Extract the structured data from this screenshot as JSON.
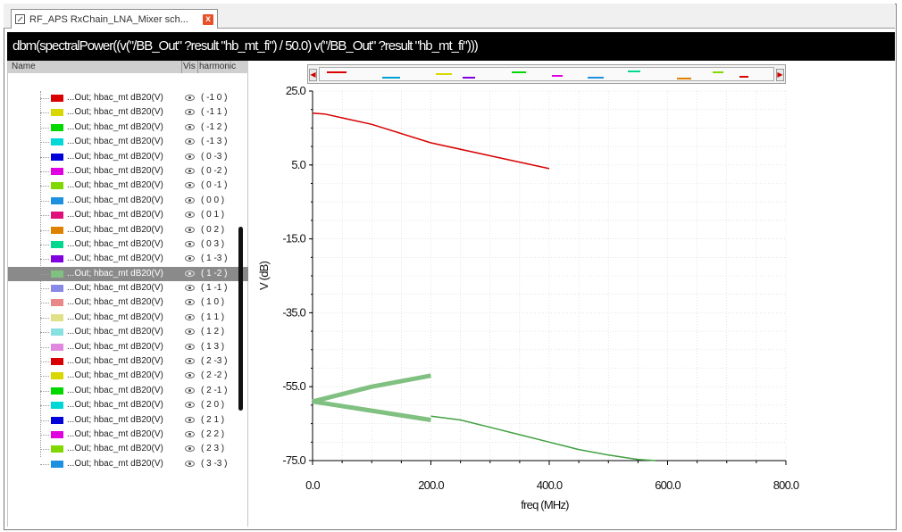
{
  "tab": {
    "title": "RF_APS RxChain_LNA_Mixer sch...",
    "close_label": "x"
  },
  "expression": "dbm(spectralPower((v(\"/BB_Out\" ?result \"hb_mt_fi\") / 50.0) v(\"/BB_Out\" ?result \"hb_mt_fi\")))",
  "list_header": {
    "name": "Name",
    "vis": "Vis",
    "harmonic": "harmonic"
  },
  "signals": [
    {
      "label": "...Out; hbac_mt dB20(V)",
      "harmonic": "( -1 0 )",
      "color": "#d80000"
    },
    {
      "label": "...Out; hbac_mt dB20(V)",
      "harmonic": "( -1 1 )",
      "color": "#d8d800"
    },
    {
      "label": "...Out; hbac_mt dB20(V)",
      "harmonic": "( -1 2 )",
      "color": "#00d800"
    },
    {
      "label": "...Out; hbac_mt dB20(V)",
      "harmonic": "( -1 3 )",
      "color": "#00d8d8"
    },
    {
      "label": "...Out; hbac_mt dB20(V)",
      "harmonic": "( 0 -3 )",
      "color": "#0000d8"
    },
    {
      "label": "...Out; hbac_mt dB20(V)",
      "harmonic": "( 0 -2 )",
      "color": "#e000e0"
    },
    {
      "label": "...Out; hbac_mt dB20(V)",
      "harmonic": "( 0 -1 )",
      "color": "#80d800"
    },
    {
      "label": "...Out; hbac_mt dB20(V)",
      "harmonic": "( 0 0 )",
      "color": "#1e90e0"
    },
    {
      "label": "...Out; hbac_mt dB20(V)",
      "harmonic": "( 0 1 )",
      "color": "#e0107a"
    },
    {
      "label": "...Out; hbac_mt dB20(V)",
      "harmonic": "( 0 2 )",
      "color": "#e08000"
    },
    {
      "label": "...Out; hbac_mt dB20(V)",
      "harmonic": "( 0 3 )",
      "color": "#00d890"
    },
    {
      "label": "...Out; hbac_mt dB20(V)",
      "harmonic": "( 1 -3 )",
      "color": "#8000e0"
    },
    {
      "label": "...Out; hbac_mt dB20(V)",
      "harmonic": "( 1 -2 )",
      "color": "#80c080",
      "selected": true
    },
    {
      "label": "...Out; hbac_mt dB20(V)",
      "harmonic": "( 1 -1 )",
      "color": "#8888e8"
    },
    {
      "label": "...Out; hbac_mt dB20(V)",
      "harmonic": "( 1 0 )",
      "color": "#e88888"
    },
    {
      "label": "...Out; hbac_mt dB20(V)",
      "harmonic": "( 1 1 )",
      "color": "#e0e088"
    },
    {
      "label": "...Out; hbac_mt dB20(V)",
      "harmonic": "( 1 2 )",
      "color": "#88e0e0"
    },
    {
      "label": "...Out; hbac_mt dB20(V)",
      "harmonic": "( 1 3 )",
      "color": "#e088e0"
    },
    {
      "label": "...Out; hbac_mt dB20(V)",
      "harmonic": "( 2 -3 )",
      "color": "#d80000"
    },
    {
      "label": "...Out; hbac_mt dB20(V)",
      "harmonic": "( 2 -2 )",
      "color": "#d8d800"
    },
    {
      "label": "...Out; hbac_mt dB20(V)",
      "harmonic": "( 2 -1 )",
      "color": "#00d800"
    },
    {
      "label": "...Out; hbac_mt dB20(V)",
      "harmonic": "( 2 0 )",
      "color": "#00d8d8"
    },
    {
      "label": "...Out; hbac_mt dB20(V)",
      "harmonic": "( 2 1 )",
      "color": "#0000d8"
    },
    {
      "label": "...Out; hbac_mt dB20(V)",
      "harmonic": "( 2 2 )",
      "color": "#e000e0"
    },
    {
      "label": "...Out; hbac_mt dB20(V)",
      "harmonic": "( 2 3 )",
      "color": "#80d800"
    },
    {
      "label": "...Out; hbac_mt dB20(V)",
      "harmonic": "( 3 -3 )",
      "color": "#1e90e0"
    }
  ],
  "chart_data": {
    "type": "line",
    "xlabel": "freq (MHz)",
    "ylabel": "V (dB)",
    "xlim": [
      0,
      800
    ],
    "ylim": [
      -75,
      25
    ],
    "x_ticks": [
      0,
      200,
      400,
      600,
      800
    ],
    "x_tick_labels": [
      "0.0",
      "200.0",
      "400.0",
      "600.0",
      "800.0"
    ],
    "y_ticks": [
      25,
      5,
      -15,
      -35,
      -55,
      -75
    ],
    "y_tick_labels": [
      "25.0",
      "5.0",
      "-15.0",
      "-35.0",
      "-55.0",
      "-75.0"
    ],
    "grid": true,
    "series": [
      {
        "color": "#d80000",
        "width": 1.5,
        "x": [
          0,
          20,
          100,
          200,
          300,
          400
        ],
        "y": [
          19,
          18.8,
          16,
          11,
          7.5,
          4
        ]
      },
      {
        "color": "#80c080",
        "width": 5,
        "x": [
          0,
          100,
          200
        ],
        "y": [
          -59,
          -55,
          -52
        ]
      },
      {
        "color": "#80c080",
        "width": 5,
        "x": [
          0,
          100,
          200
        ],
        "y": [
          -59,
          -61.5,
          -64
        ]
      },
      {
        "color": "#40a040",
        "width": 1.5,
        "x": [
          200,
          250,
          300,
          350,
          400,
          450,
          500,
          550,
          580
        ],
        "y": [
          -63,
          -64,
          -66,
          -68,
          -70,
          -72,
          -73.5,
          -74.7,
          -75
        ]
      }
    ]
  }
}
